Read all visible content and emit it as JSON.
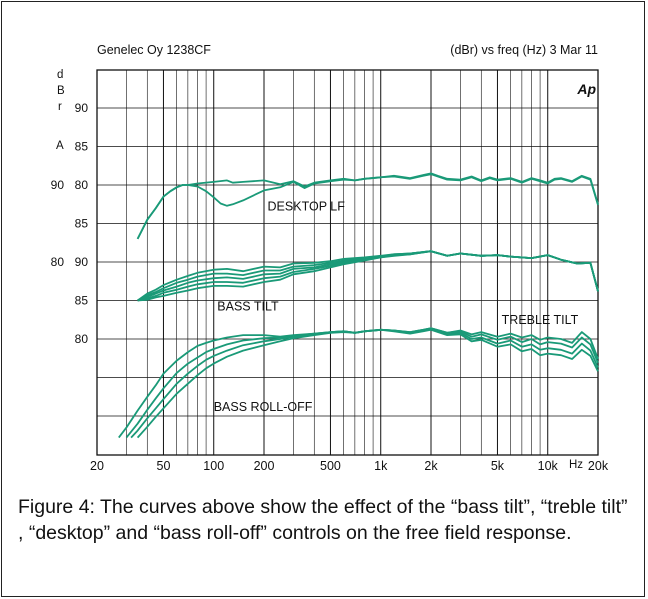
{
  "chart_data": {
    "type": "line",
    "header_left": "Genelec Oy 1238CF",
    "header_right": "(dBr) vs freq (Hz) 3 Mar 11",
    "logo": "Ap",
    "ylabel_stack": [
      "d",
      "B",
      "r",
      "A"
    ],
    "xlabel": "Hz",
    "x_scale": "log",
    "xlim": [
      20,
      20000
    ],
    "x_ticks": [
      {
        "v": 20,
        "label": "20"
      },
      {
        "v": 50,
        "label": "50"
      },
      {
        "v": 100,
        "label": "100"
      },
      {
        "v": 200,
        "label": "200"
      },
      {
        "v": 500,
        "label": "500"
      },
      {
        "v": 1000,
        "label": "1k"
      },
      {
        "v": 2000,
        "label": "2k"
      },
      {
        "v": 5000,
        "label": "5k"
      },
      {
        "v": 10000,
        "label": "10k"
      },
      {
        "v": 20000,
        "label": "20k"
      }
    ],
    "grid": true,
    "y_labels": [
      {
        "row": 1,
        "texts": [
          "90"
        ]
      },
      {
        "row": 2,
        "texts": [
          "85"
        ]
      },
      {
        "row": 3,
        "texts": [
          "90",
          "80"
        ]
      },
      {
        "row": 4,
        "texts": [
          "85"
        ]
      },
      {
        "row": 5,
        "texts": [
          "80",
          "90"
        ]
      },
      {
        "row": 6,
        "texts": [
          "85"
        ]
      },
      {
        "row": 7,
        "texts": [
          "80"
        ]
      }
    ],
    "groups": [
      {
        "label": "DESKTOP LF",
        "label_at": [
          210,
          82.2
        ],
        "series": [
          {
            "x": [
              35,
              40,
              45,
              50,
              55,
              60,
              65,
              70,
              80,
              100,
              120,
              130,
              150,
              200,
              250,
              300,
              350,
              400,
              500,
              600,
              700,
              800,
              1000,
              1200,
              1500,
              1800,
              2000,
              2200,
              2500,
              3000,
              3500,
              4000,
              4500,
              5000,
              6000,
              7000,
              8000,
              9000,
              10000,
              11000,
              12000,
              14000,
              16000,
              18000,
              20000
            ],
            "y": [
              78,
              80.5,
              82,
              83.5,
              84.2,
              84.7,
              85,
              85,
              85.2,
              85.4,
              85.6,
              85.3,
              85.4,
              85.6,
              85.1,
              85.5,
              84.8,
              85.3,
              85.6,
              85.8,
              85.6,
              85.8,
              86,
              86.2,
              85.9,
              86.3,
              86.5,
              86.2,
              85.8,
              85.7,
              86.1,
              85.6,
              86,
              85.7,
              85.9,
              85.4,
              85.9,
              85.6,
              85.3,
              85.8,
              85.9,
              85.5,
              86.2,
              85.8,
              82.5
            ]
          },
          {
            "x": [
              35,
              40,
              45,
              50,
              55,
              60,
              65,
              70,
              80,
              90,
              100,
              110,
              120,
              130,
              150,
              200,
              250,
              300,
              350,
              400,
              500,
              600,
              700,
              800,
              1000,
              1200,
              1500,
              1800,
              2000,
              2200,
              2500,
              3000,
              3500,
              4000,
              4500,
              5000,
              6000,
              7000,
              8000,
              9000,
              10000,
              11000,
              12000,
              14000,
              16000,
              18000,
              20000
            ],
            "y": [
              78,
              80.5,
              82,
              83.5,
              84.2,
              84.7,
              85,
              85,
              84.8,
              84.2,
              83.4,
              82.6,
              82.3,
              82.5,
              83,
              84.3,
              84.7,
              85.4,
              84.6,
              85.2,
              85.5,
              85.7,
              85.6,
              85.8,
              86,
              86.1,
              85.8,
              86.2,
              86.4,
              86.1,
              85.7,
              85.6,
              86,
              85.5,
              85.9,
              85.6,
              85.8,
              85.3,
              85.8,
              85.5,
              85.2,
              85.7,
              85.8,
              85.4,
              86.1,
              85.7,
              82.4
            ]
          }
        ]
      },
      {
        "label": "BASS TILT",
        "label_at": [
          105,
          79.2
        ],
        "series": [
          {
            "x": [
              35,
              40,
              45,
              50,
              60,
              70,
              80,
              100,
              120,
              150,
              200,
              250,
              300,
              400,
              500,
              600,
              800,
              1000,
              1200,
              1500,
              2000,
              2500,
              3000,
              4000,
              5000,
              6000,
              8000,
              10000,
              12000,
              15000,
              18000,
              20000
            ],
            "y": [
              80,
              80.9,
              81.4,
              82,
              82.7,
              83.2,
              83.6,
              84,
              84.1,
              83.8,
              84.4,
              84.3,
              84.8,
              84.9,
              85.1,
              85.4,
              85.6,
              85.8,
              86,
              86.1,
              86.4,
              85.8,
              86.1,
              85.8,
              85.9,
              85.7,
              85.5,
              85.9,
              85.3,
              84.8,
              84.9,
              81.2
            ]
          },
          {
            "x": [
              35,
              40,
              45,
              50,
              60,
              70,
              80,
              100,
              120,
              150,
              200,
              250,
              300,
              400,
              500,
              600,
              800,
              1000,
              1200,
              1500,
              2000,
              2500,
              3000,
              4000,
              5000,
              6000,
              8000,
              10000,
              12000,
              15000,
              18000,
              20000
            ],
            "y": [
              80,
              80.7,
              81.1,
              81.6,
              82.3,
              82.7,
              83.1,
              83.5,
              83.5,
              83.3,
              83.9,
              83.9,
              84.4,
              84.6,
              84.9,
              85.2,
              85.5,
              85.7,
              86,
              86.1,
              86.4,
              85.8,
              86.1,
              85.8,
              85.9,
              85.7,
              85.5,
              85.9,
              85.3,
              84.8,
              84.9,
              81.2
            ]
          },
          {
            "x": [
              35,
              40,
              45,
              50,
              60,
              70,
              80,
              100,
              120,
              150,
              200,
              250,
              300,
              400,
              500,
              600,
              800,
              1000,
              1200,
              1500,
              2000,
              2500,
              3000,
              4000,
              5000,
              6000,
              8000,
              10000,
              12000,
              15000,
              18000,
              20000
            ],
            "y": [
              80,
              80.5,
              80.9,
              81.3,
              81.8,
              82.3,
              82.6,
              82.9,
              83,
              82.8,
              83.4,
              83.5,
              84.1,
              84.3,
              84.7,
              85,
              85.4,
              85.7,
              85.9,
              86.1,
              86.4,
              85.8,
              86.1,
              85.8,
              85.9,
              85.7,
              85.5,
              85.9,
              85.3,
              84.8,
              84.9,
              81.2
            ]
          },
          {
            "x": [
              35,
              40,
              45,
              50,
              60,
              70,
              80,
              100,
              120,
              150,
              200,
              250,
              300,
              400,
              500,
              600,
              800,
              1000,
              1200,
              1500,
              2000,
              2500,
              3000,
              4000,
              5000,
              6000,
              8000,
              10000,
              12000,
              15000,
              18000,
              20000
            ],
            "y": [
              80,
              80.3,
              80.6,
              81,
              81.4,
              81.8,
              82.1,
              82.4,
              82.4,
              82.3,
              82.9,
              83.1,
              83.7,
              84.1,
              84.5,
              84.9,
              85.3,
              85.6,
              85.9,
              86,
              86.4,
              85.8,
              86.1,
              85.8,
              85.9,
              85.7,
              85.5,
              85.9,
              85.3,
              84.8,
              84.9,
              81.2
            ]
          },
          {
            "x": [
              35,
              40,
              45,
              50,
              60,
              70,
              80,
              100,
              120,
              150,
              200,
              250,
              300,
              400,
              500,
              600,
              800,
              1000,
              1200,
              1500,
              2000,
              2500,
              3000,
              4000,
              5000,
              6000,
              8000,
              10000,
              12000,
              15000,
              18000,
              20000
            ],
            "y": [
              80,
              80.1,
              80.4,
              80.6,
              81,
              81.3,
              81.6,
              81.9,
              81.9,
              81.8,
              82.4,
              82.7,
              83.4,
              83.8,
              84.3,
              84.7,
              85.2,
              85.6,
              85.8,
              86,
              86.4,
              85.8,
              86.1,
              85.8,
              85.9,
              85.7,
              85.5,
              85.9,
              85.3,
              84.8,
              84.9,
              81.2
            ]
          }
        ]
      },
      {
        "label": "BASS ROLL-OFF",
        "label_at": [
          100,
          76.2
        ],
        "series": [
          {
            "x": [
              27,
              30,
              35,
              40,
              45,
              50,
              60,
              70,
              80,
              90,
              100,
              120,
              150,
              200,
              250,
              300,
              400,
              500,
              600,
              700,
              800,
              1000,
              1200,
              1500,
              1800,
              2000,
              2500,
              3000,
              3500,
              4000,
              5000,
              6000,
              7000,
              8000,
              9000,
              10000,
              12000,
              14000,
              16000,
              18000,
              20000
            ],
            "y": [
              72.2,
              73.5,
              75.7,
              77.5,
              79,
              80.5,
              82.2,
              83.3,
              84.1,
              84.5,
              84.8,
              85.2,
              85.5,
              85.5,
              85.3,
              85.5,
              85.7,
              85.9,
              86,
              85.8,
              86,
              86.2,
              86.1,
              85.9,
              86.2,
              86.4,
              85.8,
              86.1,
              85.6,
              85.9,
              85.3,
              85.7,
              85.2,
              85.5,
              84.9,
              85.2,
              85,
              84.5,
              85.9,
              85,
              82.4
            ]
          },
          {
            "x": [
              30,
              35,
              40,
              45,
              50,
              60,
              70,
              80,
              90,
              100,
              120,
              150,
              200,
              250,
              300,
              400,
              500,
              600,
              700,
              800,
              1000,
              1200,
              1500,
              1800,
              2000,
              2500,
              3000,
              3500,
              4000,
              5000,
              6000,
              7000,
              8000,
              9000,
              10000,
              12000,
              14000,
              16000,
              18000,
              20000
            ],
            "y": [
              72.2,
              74,
              75.8,
              77.3,
              78.6,
              80.6,
              81.8,
              82.6,
              83.3,
              83.7,
              84.3,
              84.8,
              85.1,
              85.2,
              85.4,
              85.7,
              85.9,
              86,
              85.8,
              86,
              86.2,
              86.1,
              85.9,
              86.2,
              86.4,
              85.8,
              86,
              85.3,
              85.6,
              84.9,
              85.3,
              84.6,
              85,
              84.3,
              84.6,
              84.4,
              83.9,
              85.2,
              84.3,
              81.9
            ]
          },
          {
            "x": [
              32,
              35,
              40,
              45,
              50,
              60,
              70,
              80,
              90,
              100,
              120,
              150,
              200,
              250,
              300,
              400,
              500,
              600,
              700,
              800,
              1000,
              1200,
              1500,
              1800,
              2000,
              2500,
              3000,
              3500,
              4000,
              5000,
              6000,
              7000,
              8000,
              9000,
              10000,
              12000,
              14000,
              16000,
              18000,
              20000
            ],
            "y": [
              72.2,
              73.1,
              74.7,
              76,
              77.2,
              79.2,
              80.5,
              81.5,
              82.3,
              82.8,
              83.5,
              84.2,
              84.7,
              85,
              85.3,
              85.6,
              85.9,
              86,
              85.8,
              86,
              86.2,
              86.1,
              85.8,
              86.1,
              86.3,
              85.6,
              85.8,
              85,
              85.2,
              84.4,
              84.8,
              84,
              84.3,
              83.6,
              83.8,
              83.6,
              83.1,
              84.4,
              83.5,
              81.3
            ]
          },
          {
            "x": [
              35,
              40,
              45,
              50,
              60,
              70,
              80,
              90,
              100,
              120,
              150,
              200,
              250,
              300,
              400,
              500,
              600,
              700,
              800,
              1000,
              1200,
              1500,
              1800,
              2000,
              2500,
              3000,
              3500,
              4000,
              5000,
              6000,
              7000,
              8000,
              9000,
              10000,
              12000,
              14000,
              16000,
              18000,
              20000
            ],
            "y": [
              72.2,
              73.6,
              74.9,
              76,
              77.9,
              79.2,
              80.3,
              81.2,
              81.8,
              82.7,
              83.5,
              84.2,
              84.7,
              85.1,
              85.5,
              85.8,
              85.9,
              85.8,
              86,
              86.2,
              86,
              85.7,
              86,
              86.2,
              85.5,
              85.6,
              84.7,
              84.9,
              84,
              84.3,
              83.4,
              83.7,
              82.9,
              83.1,
              82.9,
              82.4,
              83.6,
              82.8,
              80.8
            ]
          }
        ]
      },
      {
        "label": "TREBLE TILT",
        "label_at": [
          5300,
          77.5
        ],
        "series": []
      }
    ]
  },
  "caption": "Figure 4: The curves above show the effect of the “bass tilt”, “treble tilt” , “desktop” and “bass roll-off” controls on the free field response.",
  "colors": {
    "curve": "#1a9a78",
    "grid": "#111111",
    "text": "#111111"
  }
}
